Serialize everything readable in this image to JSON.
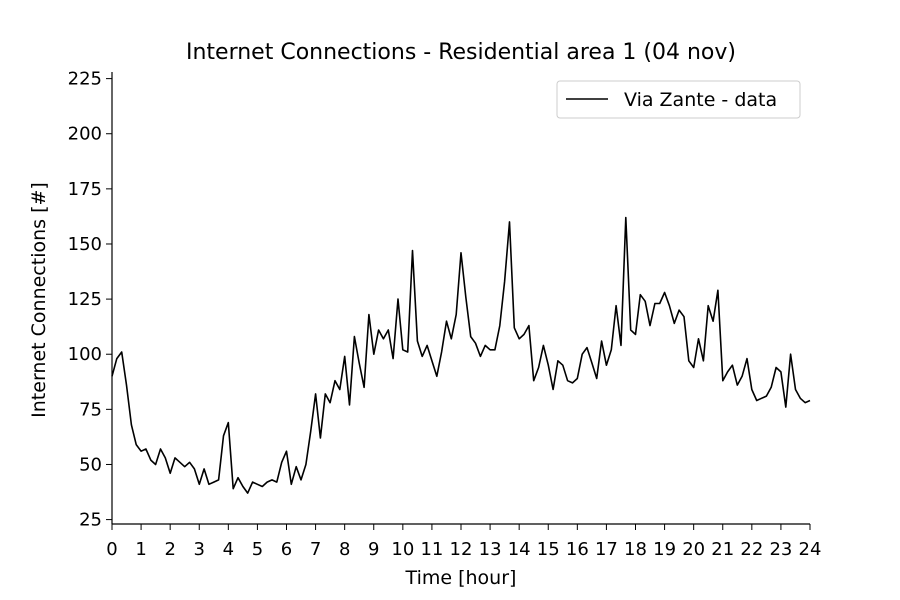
{
  "chart_data": {
    "type": "line",
    "title": "Internet Connections - Residential area 1 (04 nov)",
    "xlabel": "Time [hour]",
    "ylabel": "Internet Connections [#]",
    "xlim": [
      0,
      24
    ],
    "ylim": [
      23,
      228
    ],
    "xticks": [
      0,
      1,
      2,
      3,
      4,
      5,
      6,
      7,
      8,
      9,
      10,
      11,
      12,
      13,
      14,
      15,
      16,
      17,
      18,
      19,
      20,
      21,
      22,
      23,
      24
    ],
    "yticks": [
      25,
      50,
      75,
      100,
      125,
      150,
      175,
      200,
      225
    ],
    "grid": false,
    "legend_position": "top-right",
    "series": [
      {
        "name": "Via Zante - data",
        "color": "#000000",
        "x_step_minutes": 10,
        "values": [
          90,
          98,
          101,
          86,
          68,
          59,
          56,
          57,
          52,
          50,
          57,
          53,
          46,
          53,
          51,
          49,
          51,
          48,
          41,
          48,
          41,
          42,
          43,
          63,
          69,
          39,
          44,
          40,
          37,
          42,
          41,
          40,
          42,
          43,
          42,
          51,
          56,
          41,
          49,
          43,
          50,
          65,
          82,
          62,
          82,
          78,
          88,
          84,
          99,
          77,
          108,
          96,
          85,
          118,
          100,
          111,
          107,
          111,
          98,
          125,
          102,
          101,
          147,
          106,
          99,
          104,
          97,
          90,
          101,
          115,
          107,
          118,
          146,
          126,
          108,
          105,
          99,
          104,
          102,
          102,
          113,
          133,
          160,
          112,
          107,
          109,
          113,
          88,
          94,
          104,
          95,
          84,
          97,
          95,
          88,
          87,
          89,
          100,
          103,
          96,
          89,
          106,
          95,
          102,
          122,
          104,
          162,
          111,
          109,
          127,
          124,
          113,
          123,
          123,
          128,
          122,
          114,
          120,
          117,
          97,
          94,
          107,
          97,
          122,
          115,
          129,
          88,
          92,
          95,
          86,
          90,
          98,
          84,
          79,
          80,
          81,
          85,
          94,
          92,
          76,
          100,
          84,
          80,
          78,
          79
        ]
      }
    ]
  }
}
